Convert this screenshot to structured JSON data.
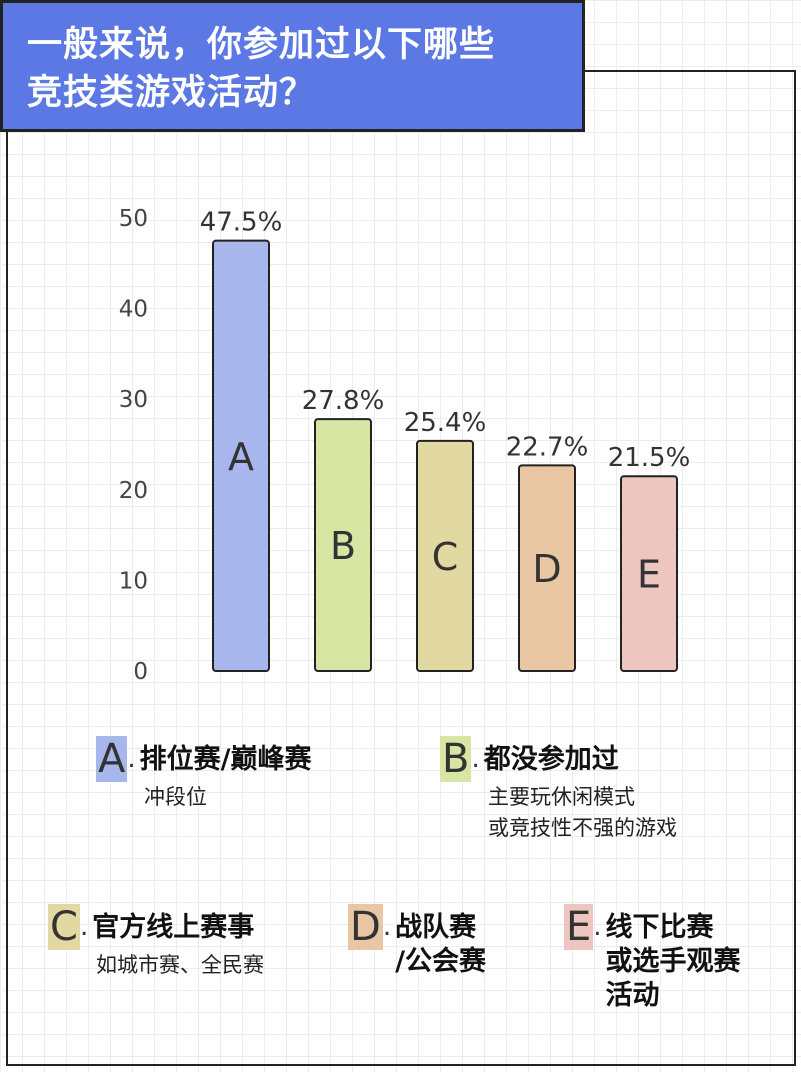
{
  "title": {
    "line1": "一般来说，你参加过以下哪些",
    "line2": "竞技类游戏活动？"
  },
  "chart_data": {
    "type": "bar",
    "categories": [
      "A",
      "B",
      "C",
      "D",
      "E"
    ],
    "values": [
      47.5,
      27.8,
      25.4,
      22.7,
      21.5
    ],
    "value_labels": [
      "47.5%",
      "27.8%",
      "25.4%",
      "22.7%",
      "21.5%"
    ],
    "colors": [
      "#a7b6ec",
      "#d8e6a4",
      "#e2d8a1",
      "#e9c7a5",
      "#edc6c0"
    ],
    "yticks": [
      0,
      10,
      20,
      30,
      40,
      50
    ],
    "ylim": [
      0,
      50
    ],
    "grid": true,
    "title": "",
    "xlabel": "",
    "ylabel": ""
  },
  "legend": [
    {
      "letter": "A",
      "label": "排位赛/巅峰赛",
      "sub": "冲段位",
      "color": "#a7b6ec"
    },
    {
      "letter": "B",
      "label": "都没参加过",
      "sub": "主要玩休闲模式\n或竞技性不强的游戏",
      "color": "#d8e6a4"
    },
    {
      "letter": "C",
      "label": "官方线上赛事",
      "sub": "如城市赛、全民赛",
      "color": "#e2d8a1"
    },
    {
      "letter": "D",
      "label": "战队赛\n/公会赛",
      "sub": "",
      "color": "#e9c7a5"
    },
    {
      "letter": "E",
      "label": "线下比赛\n或选手观赛\n活动",
      "sub": "",
      "color": "#edc6c0"
    }
  ]
}
